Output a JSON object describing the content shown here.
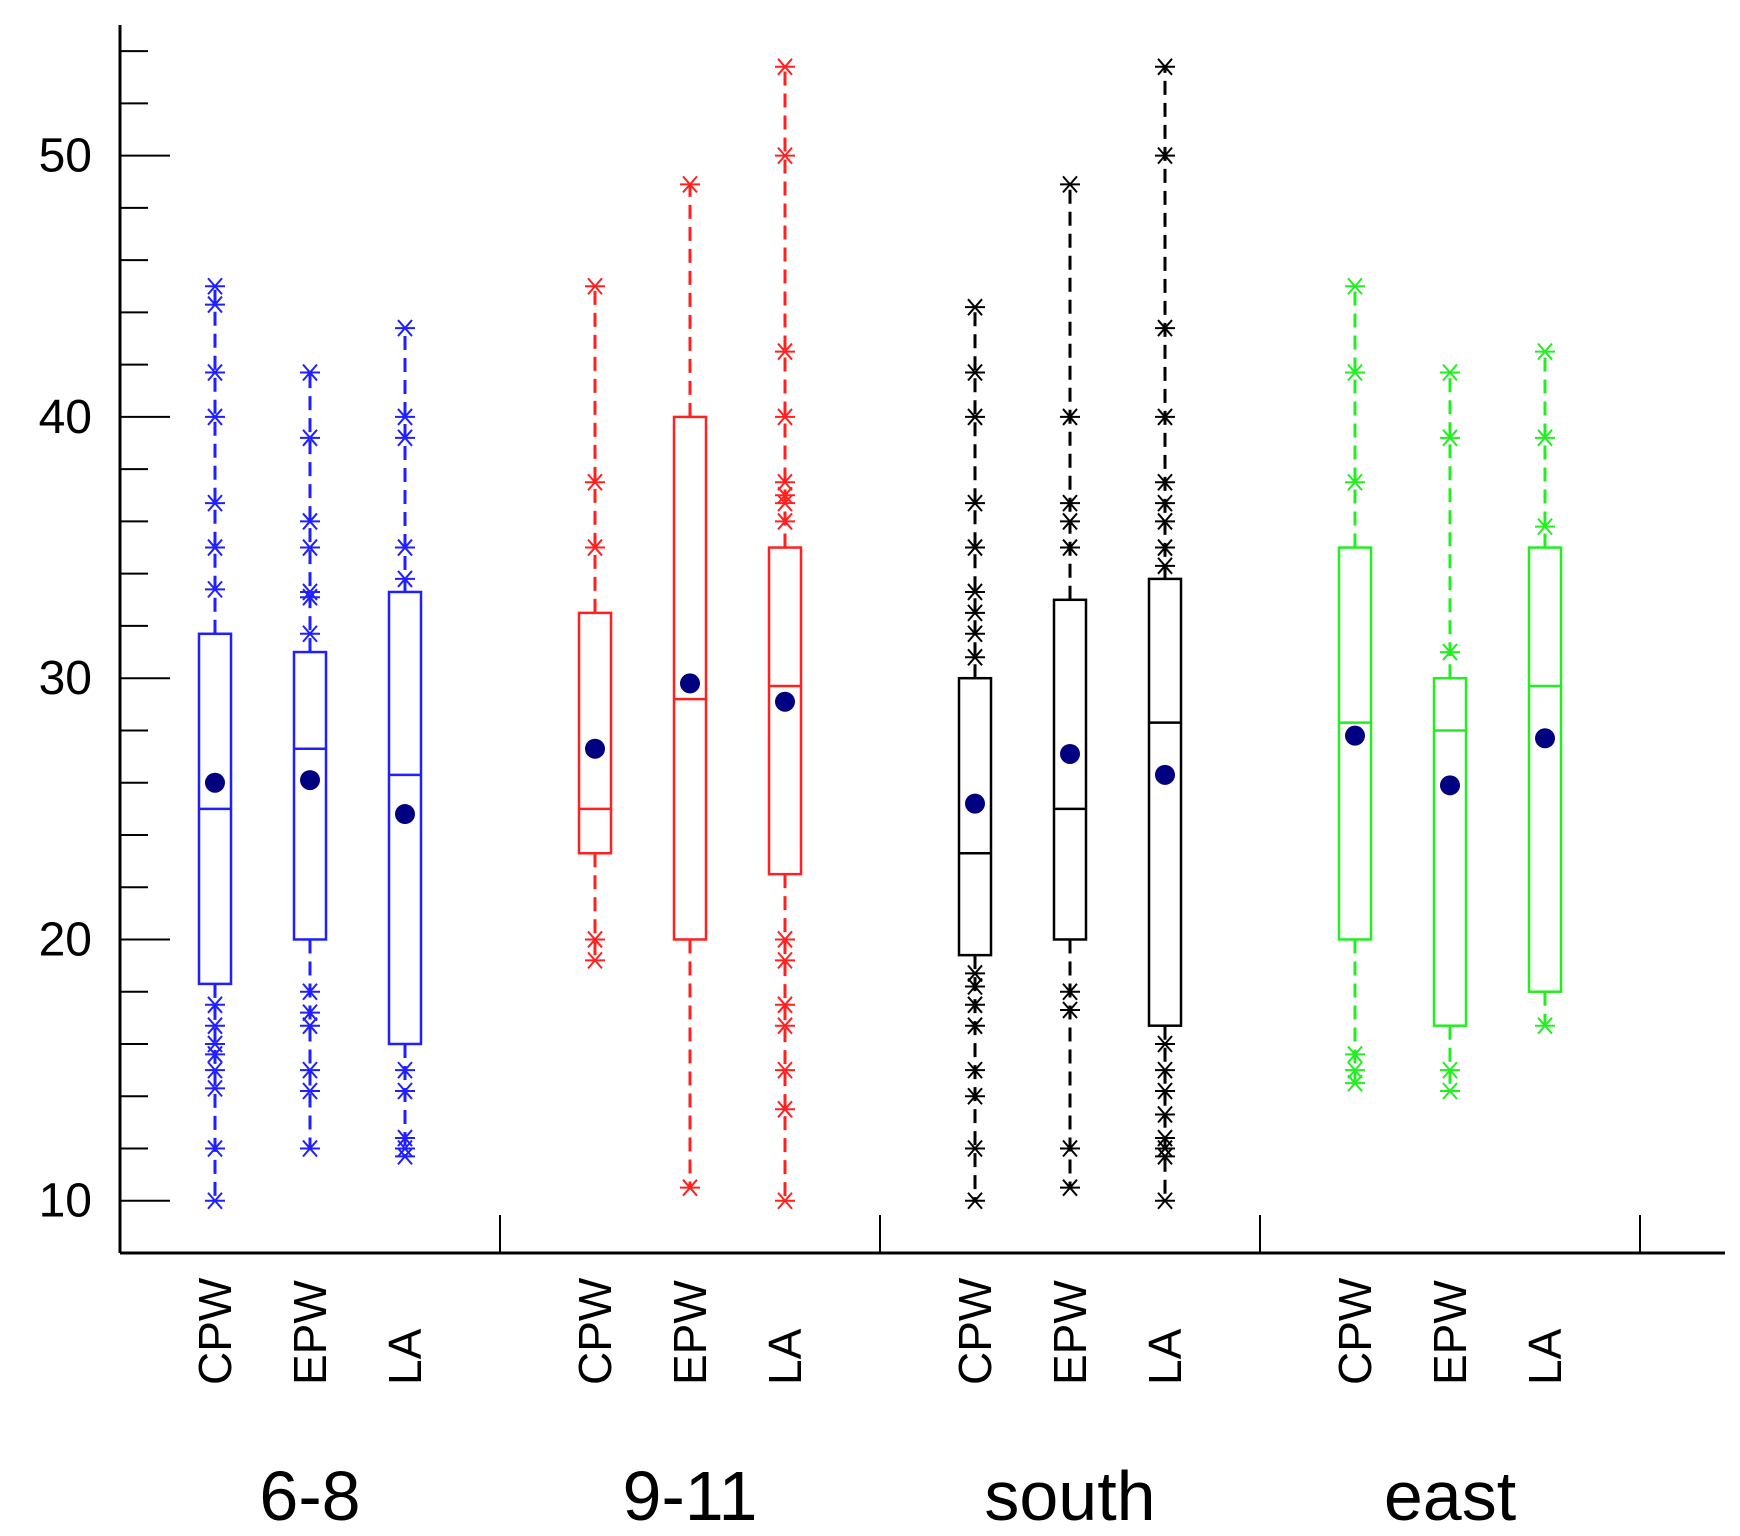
{
  "chart_data": {
    "type": "boxplot",
    "title": "",
    "xlabel": "",
    "ylabel": "",
    "ylim": [
      8,
      55
    ],
    "yticks_major": [
      10,
      20,
      30,
      40,
      50
    ],
    "yticks_minor_step": 2,
    "mean_color": "#000080",
    "groups": [
      {
        "name": "6-8",
        "color": "#1f1fff",
        "boxes": [
          {
            "label": "CPW",
            "q1": 18.3,
            "median": 25,
            "q3": 31.7,
            "mean": 26,
            "outliers": [
              10,
              12,
              14.3,
              15,
              15.6,
              16,
              16.7,
              17.5,
              33.4,
              35,
              36.7,
              40,
              41.7,
              44.3,
              45
            ]
          },
          {
            "label": "EPW",
            "q1": 20,
            "median": 27.3,
            "q3": 31,
            "mean": 26.1,
            "outliers": [
              12,
              14.2,
              15,
              16.7,
              17.2,
              18,
              31.7,
              33.1,
              33.3,
              35,
              36,
              39.2,
              41.7
            ]
          },
          {
            "label": "LA",
            "q1": 16,
            "median": 26.3,
            "q3": 33.3,
            "mean": 24.8,
            "outliers": [
              11.7,
              12,
              12.4,
              14.2,
              15,
              33.8,
              35,
              39.2,
              40,
              43.4
            ]
          }
        ]
      },
      {
        "name": "9-11",
        "color": "#ff2020",
        "boxes": [
          {
            "label": "CPW",
            "q1": 23.3,
            "median": 25,
            "q3": 32.5,
            "mean": 27.3,
            "outliers": [
              19.2,
              20,
              35,
              37.5,
              45
            ]
          },
          {
            "label": "EPW",
            "q1": 20,
            "median": 29.2,
            "q3": 40,
            "mean": 29.8,
            "outliers": [
              10.5,
              48.9
            ]
          },
          {
            "label": "LA",
            "q1": 22.5,
            "median": 29.7,
            "q3": 35,
            "mean": 29.1,
            "outliers": [
              10,
              13.5,
              15,
              16.7,
              17.5,
              19.2,
              20,
              36,
              36.7,
              37,
              37.5,
              40,
              42.5,
              50,
              53.4
            ]
          }
        ]
      },
      {
        "name": "south",
        "color": "#000000",
        "boxes": [
          {
            "label": "CPW",
            "q1": 19.4,
            "median": 23.3,
            "q3": 30,
            "mean": 25.2,
            "outliers": [
              10,
              12,
              14,
              15,
              16.7,
              17.5,
              18.2,
              18.7,
              30.8,
              31.7,
              32.5,
              33.3,
              35,
              36.7,
              40,
              41.7,
              44.2
            ]
          },
          {
            "label": "EPW",
            "q1": 20,
            "median": 25,
            "q3": 33,
            "mean": 27.1,
            "outliers": [
              10.5,
              12,
              17.3,
              18,
              35,
              36,
              36.7,
              40,
              48.9
            ]
          },
          {
            "label": "LA",
            "q1": 16.7,
            "median": 28.3,
            "q3": 33.8,
            "mean": 26.3,
            "outliers": [
              10,
              11.7,
              12,
              12.4,
              13.3,
              14.2,
              15,
              16,
              34.3,
              35,
              36,
              36.7,
              37.5,
              40,
              43.4,
              50,
              53.4
            ]
          }
        ]
      },
      {
        "name": "east",
        "color": "#22ee22",
        "boxes": [
          {
            "label": "CPW",
            "q1": 20,
            "median": 28.3,
            "q3": 35,
            "mean": 27.8,
            "outliers": [
              14.5,
              15,
              15.6,
              37.5,
              41.7,
              45
            ]
          },
          {
            "label": "EPW",
            "q1": 16.7,
            "median": 28,
            "q3": 30,
            "mean": 25.9,
            "outliers": [
              14.2,
              15,
              31,
              39.2,
              41.7
            ]
          },
          {
            "label": "LA",
            "q1": 18,
            "median": 29.7,
            "q3": 35,
            "mean": 27.7,
            "outliers": [
              16.7,
              35.8,
              39.2,
              42.5
            ]
          }
        ]
      }
    ]
  }
}
